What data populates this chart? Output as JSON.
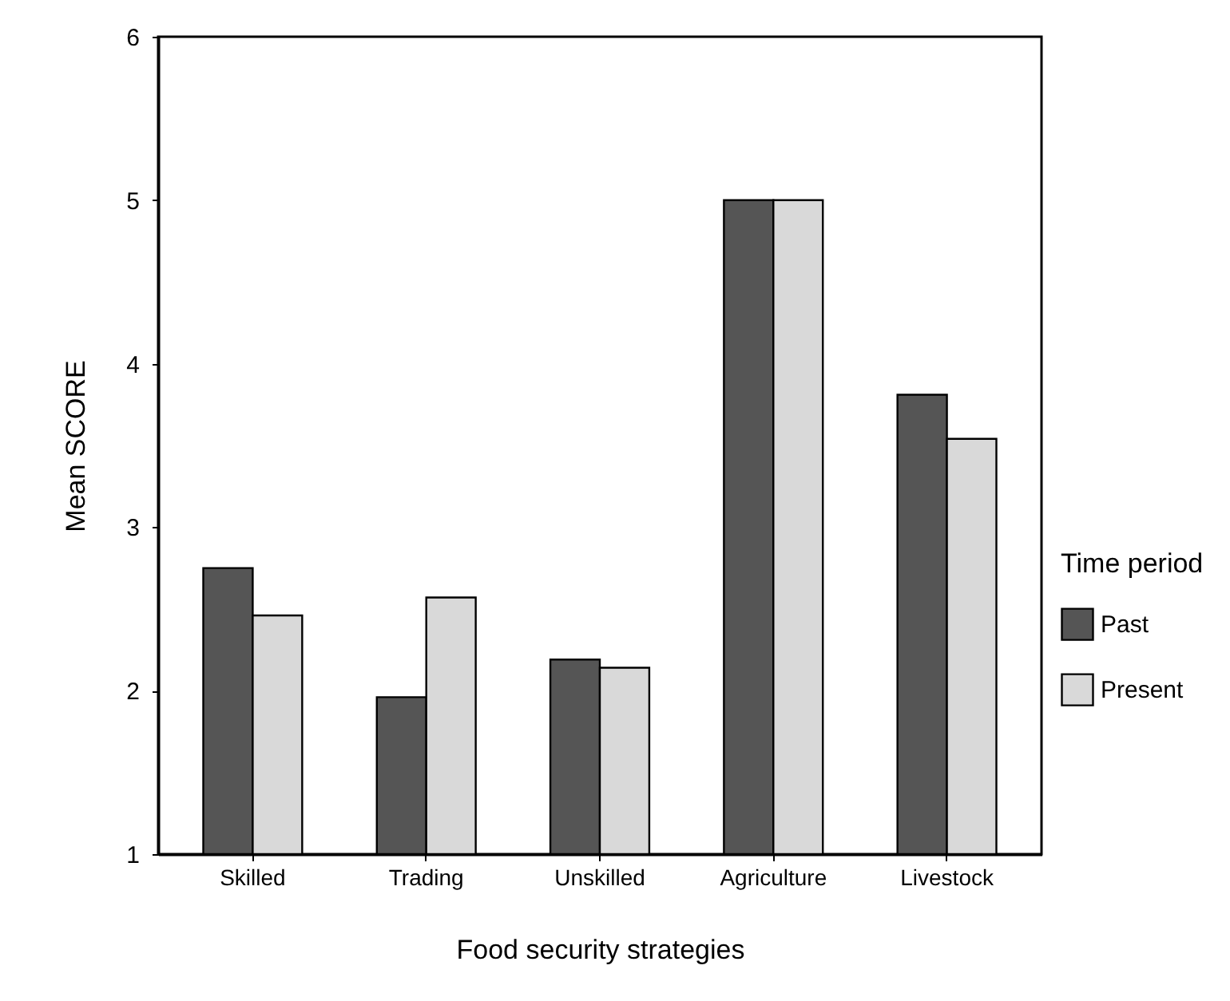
{
  "chart_data": {
    "type": "bar",
    "xlabel": "Food security strategies",
    "ylabel": "Mean SCORE",
    "legend_title": "Time period",
    "categories": [
      "Skilled",
      "Trading",
      "Unskilled",
      "Agriculture",
      "Livestock"
    ],
    "series": [
      {
        "name": "Past",
        "color": "#555555",
        "values": [
          2.75,
          1.96,
          2.19,
          5.0,
          3.81
        ]
      },
      {
        "name": "Present",
        "color": "#d9d9d9",
        "values": [
          2.46,
          2.57,
          2.14,
          5.0,
          3.54
        ]
      }
    ],
    "ylim": [
      1,
      6
    ],
    "yticks": [
      1,
      2,
      3,
      4,
      5,
      6
    ],
    "grid": false,
    "legend": "right"
  }
}
